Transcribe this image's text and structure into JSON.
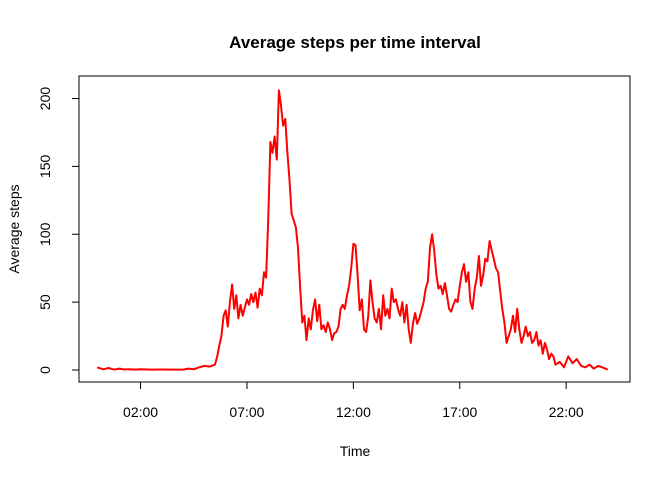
{
  "chart_data": {
    "type": "line",
    "title": "Average steps per time interval",
    "xlabel": "Time",
    "ylabel": "Average steps",
    "x_unit": "hours",
    "xlim": [
      0,
      24
    ],
    "ylim": [
      0,
      206
    ],
    "grid": false,
    "x_ticks": [
      {
        "value": 2,
        "label": "02:00"
      },
      {
        "value": 7,
        "label": "07:00"
      },
      {
        "value": 12,
        "label": "12:00"
      },
      {
        "value": 17,
        "label": "17:00"
      },
      {
        "value": 22,
        "label": "22:00"
      }
    ],
    "y_ticks": [
      {
        "value": 0,
        "label": "0"
      },
      {
        "value": 50,
        "label": "50"
      },
      {
        "value": 100,
        "label": "100"
      },
      {
        "value": 150,
        "label": "150"
      },
      {
        "value": 200,
        "label": "200"
      }
    ],
    "series": [
      {
        "color": "#ff0000",
        "points": [
          [
            0.0,
            1.7
          ],
          [
            0.25,
            0.5
          ],
          [
            0.5,
            1.5
          ],
          [
            0.75,
            0.3
          ],
          [
            1.0,
            1.0
          ],
          [
            1.25,
            0.4
          ],
          [
            1.5,
            0.6
          ],
          [
            1.75,
            0.3
          ],
          [
            2.0,
            0.5
          ],
          [
            2.5,
            0.3
          ],
          [
            3.0,
            0.4
          ],
          [
            3.5,
            0.3
          ],
          [
            4.0,
            0.3
          ],
          [
            4.25,
            1.0
          ],
          [
            4.5,
            0.5
          ],
          [
            4.75,
            2.0
          ],
          [
            5.0,
            3.0
          ],
          [
            5.25,
            2.5
          ],
          [
            5.5,
            4.0
          ],
          [
            5.6,
            10.0
          ],
          [
            5.7,
            18.0
          ],
          [
            5.8,
            25.0
          ],
          [
            5.9,
            40.0
          ],
          [
            6.0,
            44.0
          ],
          [
            6.1,
            32.0
          ],
          [
            6.2,
            50.0
          ],
          [
            6.3,
            63.0
          ],
          [
            6.4,
            45.0
          ],
          [
            6.5,
            55.0
          ],
          [
            6.6,
            38.0
          ],
          [
            6.7,
            48.0
          ],
          [
            6.8,
            40.0
          ],
          [
            6.9,
            46.0
          ],
          [
            7.0,
            52.0
          ],
          [
            7.1,
            48.0
          ],
          [
            7.2,
            56.0
          ],
          [
            7.3,
            50.0
          ],
          [
            7.4,
            57.0
          ],
          [
            7.5,
            46.0
          ],
          [
            7.6,
            60.0
          ],
          [
            7.7,
            55.0
          ],
          [
            7.8,
            72.0
          ],
          [
            7.9,
            68.0
          ],
          [
            8.0,
            110.0
          ],
          [
            8.1,
            168.0
          ],
          [
            8.2,
            160.0
          ],
          [
            8.3,
            172.0
          ],
          [
            8.4,
            155.0
          ],
          [
            8.5,
            206.0
          ],
          [
            8.6,
            195.0
          ],
          [
            8.7,
            180.0
          ],
          [
            8.8,
            185.0
          ],
          [
            8.9,
            160.0
          ],
          [
            9.0,
            140.0
          ],
          [
            9.1,
            115.0
          ],
          [
            9.2,
            110.0
          ],
          [
            9.3,
            105.0
          ],
          [
            9.4,
            90.0
          ],
          [
            9.5,
            60.0
          ],
          [
            9.6,
            35.0
          ],
          [
            9.7,
            40.0
          ],
          [
            9.8,
            22.0
          ],
          [
            9.9,
            38.0
          ],
          [
            10.0,
            30.0
          ],
          [
            10.1,
            44.0
          ],
          [
            10.2,
            52.0
          ],
          [
            10.3,
            36.0
          ],
          [
            10.4,
            48.0
          ],
          [
            10.5,
            30.0
          ],
          [
            10.6,
            33.0
          ],
          [
            10.7,
            28.0
          ],
          [
            10.8,
            35.0
          ],
          [
            10.9,
            30.0
          ],
          [
            11.0,
            22.0
          ],
          [
            11.1,
            27.0
          ],
          [
            11.2,
            28.0
          ],
          [
            11.3,
            32.0
          ],
          [
            11.4,
            45.0
          ],
          [
            11.5,
            48.0
          ],
          [
            11.6,
            45.0
          ],
          [
            11.7,
            55.0
          ],
          [
            11.8,
            62.0
          ],
          [
            11.9,
            75.0
          ],
          [
            12.0,
            93.0
          ],
          [
            12.1,
            92.0
          ],
          [
            12.2,
            70.0
          ],
          [
            12.3,
            44.0
          ],
          [
            12.4,
            52.0
          ],
          [
            12.5,
            30.0
          ],
          [
            12.6,
            28.0
          ],
          [
            12.7,
            40.0
          ],
          [
            12.8,
            66.0
          ],
          [
            12.9,
            50.0
          ],
          [
            13.0,
            38.0
          ],
          [
            13.1,
            35.0
          ],
          [
            13.2,
            45.0
          ],
          [
            13.3,
            30.0
          ],
          [
            13.4,
            55.0
          ],
          [
            13.5,
            40.0
          ],
          [
            13.6,
            45.0
          ],
          [
            13.7,
            38.0
          ],
          [
            13.8,
            60.0
          ],
          [
            13.9,
            50.0
          ],
          [
            14.0,
            52.0
          ],
          [
            14.1,
            45.0
          ],
          [
            14.2,
            40.0
          ],
          [
            14.3,
            50.0
          ],
          [
            14.4,
            35.0
          ],
          [
            14.5,
            48.0
          ],
          [
            14.6,
            30.0
          ],
          [
            14.7,
            20.0
          ],
          [
            14.8,
            34.0
          ],
          [
            14.9,
            42.0
          ],
          [
            15.0,
            34.0
          ],
          [
            15.1,
            38.0
          ],
          [
            15.2,
            44.0
          ],
          [
            15.3,
            50.0
          ],
          [
            15.4,
            60.0
          ],
          [
            15.5,
            65.0
          ],
          [
            15.6,
            90.0
          ],
          [
            15.7,
            100.0
          ],
          [
            15.8,
            88.0
          ],
          [
            15.9,
            70.0
          ],
          [
            16.0,
            60.0
          ],
          [
            16.1,
            62.0
          ],
          [
            16.2,
            56.0
          ],
          [
            16.3,
            64.0
          ],
          [
            16.4,
            55.0
          ],
          [
            16.5,
            45.0
          ],
          [
            16.6,
            43.0
          ],
          [
            16.7,
            48.0
          ],
          [
            16.8,
            52.0
          ],
          [
            16.9,
            50.0
          ],
          [
            17.0,
            62.0
          ],
          [
            17.1,
            72.0
          ],
          [
            17.2,
            78.0
          ],
          [
            17.3,
            65.0
          ],
          [
            17.4,
            72.0
          ],
          [
            17.5,
            50.0
          ],
          [
            17.6,
            45.0
          ],
          [
            17.7,
            60.0
          ],
          [
            17.8,
            68.0
          ],
          [
            17.9,
            84.0
          ],
          [
            18.0,
            62.0
          ],
          [
            18.1,
            70.0
          ],
          [
            18.2,
            82.0
          ],
          [
            18.3,
            80.0
          ],
          [
            18.4,
            95.0
          ],
          [
            18.5,
            88.0
          ],
          [
            18.6,
            82.0
          ],
          [
            18.7,
            75.0
          ],
          [
            18.8,
            72.0
          ],
          [
            18.9,
            58.0
          ],
          [
            19.0,
            45.0
          ],
          [
            19.1,
            35.0
          ],
          [
            19.2,
            20.0
          ],
          [
            19.3,
            25.0
          ],
          [
            19.4,
            30.0
          ],
          [
            19.5,
            40.0
          ],
          [
            19.6,
            28.0
          ],
          [
            19.7,
            45.0
          ],
          [
            19.8,
            30.0
          ],
          [
            19.9,
            20.0
          ],
          [
            20.0,
            25.0
          ],
          [
            20.1,
            32.0
          ],
          [
            20.2,
            25.0
          ],
          [
            20.3,
            28.0
          ],
          [
            20.4,
            20.0
          ],
          [
            20.5,
            22.0
          ],
          [
            20.6,
            28.0
          ],
          [
            20.7,
            18.0
          ],
          [
            20.8,
            22.0
          ],
          [
            20.9,
            12.0
          ],
          [
            21.0,
            20.0
          ],
          [
            21.1,
            15.0
          ],
          [
            21.2,
            8.0
          ],
          [
            21.3,
            12.0
          ],
          [
            21.4,
            10.0
          ],
          [
            21.5,
            4.0
          ],
          [
            21.7,
            6.0
          ],
          [
            21.9,
            2.0
          ],
          [
            22.1,
            10.0
          ],
          [
            22.3,
            5.0
          ],
          [
            22.5,
            8.0
          ],
          [
            22.7,
            3.0
          ],
          [
            22.9,
            2.0
          ],
          [
            23.1,
            4.0
          ],
          [
            23.3,
            1.0
          ],
          [
            23.5,
            3.0
          ],
          [
            23.7,
            2.0
          ],
          [
            23.92,
            0.5
          ]
        ]
      }
    ]
  }
}
